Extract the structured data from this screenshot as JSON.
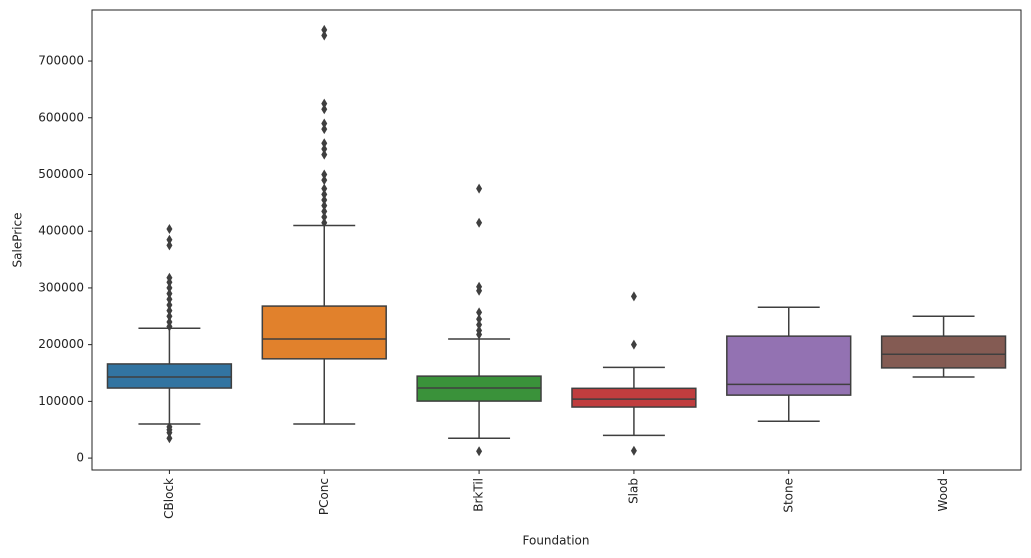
{
  "chart_data": {
    "type": "box",
    "x_label": "Foundation",
    "y_label": "SalePrice",
    "categories": [
      "CBlock",
      "PConc",
      "BrkTil",
      "Slab",
      "Stone",
      "Wood"
    ],
    "colors": [
      "#3274a1",
      "#e1812c",
      "#3a923a",
      "#c03d3e",
      "#9372b2",
      "#845b53"
    ],
    "boxes": [
      {
        "whislo": 60000,
        "q1": 123500,
        "med": 143000,
        "q3": 166000,
        "whishi": 229000,
        "fliers": [
          404000,
          385000,
          375000,
          318000,
          310000,
          300000,
          290000,
          280000,
          270000,
          260000,
          250000,
          240000,
          232000,
          55000,
          50000,
          45000,
          35000
        ]
      },
      {
        "whislo": 60000,
        "q1": 175000,
        "med": 210000,
        "q3": 268000,
        "whishi": 410000,
        "fliers": [
          755000,
          745000,
          625000,
          615000,
          590000,
          580000,
          555000,
          545000,
          535000,
          500000,
          490000,
          475000,
          465000,
          455000,
          445000,
          435000,
          425000,
          415000
        ]
      },
      {
        "whislo": 35000,
        "q1": 100500,
        "med": 123500,
        "q3": 144500,
        "whishi": 210000,
        "fliers": [
          475000,
          415000,
          302000,
          295000,
          257000,
          245000,
          235000,
          225000,
          218000,
          12000
        ]
      },
      {
        "whislo": 40000,
        "q1": 90000,
        "med": 104000,
        "q3": 123000,
        "whishi": 160000,
        "fliers": [
          285000,
          200000,
          13000
        ]
      },
      {
        "whislo": 65000,
        "q1": 111000,
        "med": 130000,
        "q3": 215000,
        "whishi": 266000,
        "fliers": []
      },
      {
        "whislo": 143000,
        "q1": 159000,
        "med": 183000,
        "q3": 215000,
        "whishi": 250000,
        "fliers": []
      }
    ],
    "ylim": [
      -21000,
      790000
    ],
    "yticks": [
      0,
      100000,
      200000,
      300000,
      400000,
      500000,
      600000,
      700000
    ],
    "grid": false
  }
}
